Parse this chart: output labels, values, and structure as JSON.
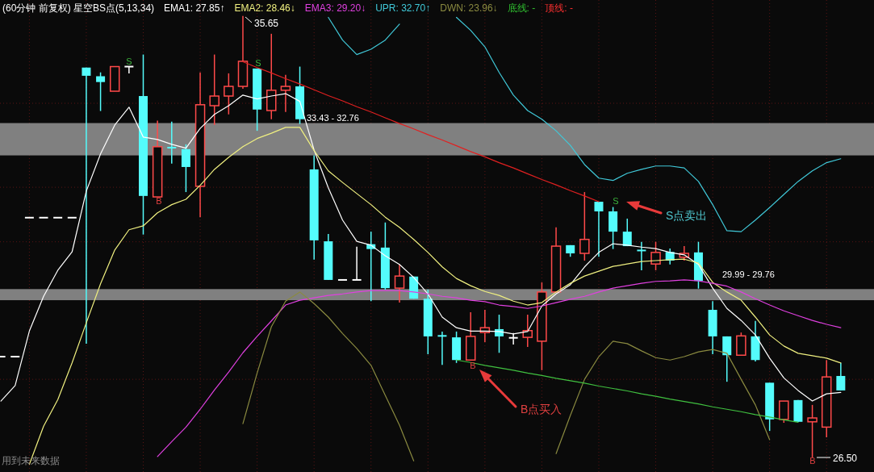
{
  "chart_data": {
    "type": "candlestick",
    "title": "(60分钟 前复权) 星空BS点(5,13,34)",
    "categories": [
      null,
      null,
      null,
      null,
      null,
      null,
      null,
      null,
      null,
      null,
      null,
      null,
      null,
      null,
      null,
      null,
      null,
      null,
      null,
      null,
      null,
      null,
      null,
      null,
      null,
      null,
      null,
      null,
      null,
      null,
      null,
      null,
      null,
      null,
      null,
      null,
      null,
      null,
      null,
      null,
      null,
      null,
      null,
      null,
      null,
      null,
      null,
      null,
      null,
      null,
      null,
      null,
      null,
      null,
      null,
      null,
      null,
      null,
      null,
      null
    ],
    "ylim": [
      26.2,
      35.98
    ],
    "yticks": [
      {
        "value": 33.84,
        "label": null
      },
      {
        "value": 32.1,
        "label": null
      },
      {
        "value": 30.97,
        "label": null
      },
      {
        "value": 28.12,
        "label": null
      }
    ],
    "grid": true,
    "legend": "top",
    "ohlc": [
      [
        28.59,
        28.59,
        28.59,
        28.59
      ],
      [
        28.59,
        28.59,
        28.59,
        28.59
      ],
      [
        31.47,
        31.47,
        31.47,
        31.47
      ],
      [
        31.47,
        31.47,
        31.47,
        31.47
      ],
      [
        31.47,
        31.47,
        31.47,
        31.47
      ],
      [
        31.47,
        31.47,
        31.47,
        31.47
      ],
      [
        34.58,
        34.58,
        28.86,
        34.41
      ],
      [
        34.4,
        34.48,
        33.68,
        34.28
      ],
      [
        34.09,
        34.6,
        34.09,
        34.6
      ],
      [
        34.6,
        34.6,
        34.46,
        34.6
      ],
      [
        33.99,
        34.85,
        31.12,
        31.92
      ],
      [
        31.9,
        33.48,
        31.9,
        32.94
      ],
      [
        32.92,
        33.46,
        32.59,
        32.9
      ],
      [
        32.89,
        32.99,
        32.0,
        32.52
      ],
      [
        32.12,
        34.48,
        31.48,
        33.81
      ],
      [
        33.79,
        34.85,
        33.39,
        33.99
      ],
      [
        33.99,
        34.46,
        33.61,
        34.19
      ],
      [
        34.19,
        35.65,
        34.14,
        34.71
      ],
      [
        34.56,
        34.56,
        33.27,
        33.71
      ],
      [
        33.69,
        35.28,
        33.51,
        34.11
      ],
      [
        34.11,
        34.43,
        33.66,
        34.19
      ],
      [
        34.19,
        34.6,
        33.41,
        33.51
      ],
      [
        32.47,
        32.76,
        30.6,
        31.0
      ],
      [
        30.98,
        31.13,
        30.18,
        30.18
      ],
      [
        30.18,
        30.18,
        30.18,
        30.18
      ],
      [
        30.18,
        30.87,
        30.18,
        30.18
      ],
      [
        30.92,
        31.18,
        29.74,
        30.82
      ],
      [
        30.85,
        31.37,
        29.98,
        30.01
      ],
      [
        30.01,
        30.5,
        29.71,
        30.26
      ],
      [
        30.25,
        30.25,
        29.79,
        29.79
      ],
      [
        29.79,
        29.98,
        28.64,
        29.01
      ],
      [
        29.02,
        29.11,
        28.42,
        29.0
      ],
      [
        28.99,
        29.11,
        28.46,
        28.52
      ],
      [
        28.52,
        29.51,
        28.52,
        29.01
      ],
      [
        29.09,
        29.56,
        28.89,
        29.19
      ],
      [
        29.16,
        29.46,
        28.67,
        29.01
      ],
      [
        28.98,
        29.08,
        28.84,
        28.98
      ],
      [
        28.99,
        29.46,
        28.79,
        29.13
      ],
      [
        28.91,
        30.13,
        28.31,
        29.93
      ],
      [
        29.93,
        31.27,
        29.93,
        30.88
      ],
      [
        30.9,
        30.9,
        30.66,
        30.73
      ],
      [
        30.73,
        32.0,
        30.58,
        31.02
      ],
      [
        31.8,
        31.8,
        30.66,
        31.6
      ],
      [
        31.6,
        31.69,
        30.82,
        31.18
      ],
      [
        31.18,
        31.45,
        30.88,
        30.88
      ],
      [
        30.79,
        30.97,
        30.38,
        30.77
      ],
      [
        30.51,
        30.97,
        30.38,
        30.75
      ],
      [
        30.76,
        30.83,
        30.5,
        30.58
      ],
      [
        30.65,
        30.88,
        30.58,
        30.73
      ],
      [
        30.75,
        30.97,
        30.0,
        30.16
      ],
      [
        29.56,
        29.74,
        28.64,
        29.01
      ],
      [
        29.01,
        29.01,
        28.07,
        28.62
      ],
      [
        28.62,
        29.09,
        28.62,
        29.02
      ],
      [
        29.01,
        29.33,
        28.49,
        28.52
      ],
      [
        28.05,
        28.05,
        27.05,
        27.29
      ],
      [
        27.29,
        27.67,
        27.22,
        27.67
      ],
      [
        27.69,
        27.69,
        27.24,
        27.24
      ],
      [
        27.24,
        27.59,
        26.5,
        27.32
      ],
      [
        27.13,
        28.52,
        26.92,
        28.17
      ],
      [
        28.19,
        28.46,
        27.89,
        27.89
      ]
    ],
    "colors": [
      "#ffffff",
      "#ffffff",
      "#ffffff",
      "#ffffff",
      "#ffffff",
      "#ffffff",
      "#54fcfc",
      "#54fcfc",
      "#ff4a4a",
      "#ffffff",
      "#54fcfc",
      "#ff4a4a",
      "#54fcfc",
      "#54fcfc",
      "#ff4a4a",
      "#ff4a4a",
      "#ff4a4a",
      "#ff4a4a",
      "#54fcfc",
      "#ff4a4a",
      "#ff4a4a",
      "#54fcfc",
      "#54fcfc",
      "#54fcfc",
      "#ffffff",
      "#ffffff",
      "#54fcfc",
      "#54fcfc",
      "#ff4a4a",
      "#54fcfc",
      "#54fcfc",
      "#54fcfc",
      "#54fcfc",
      "#ff4a4a",
      "#ff4a4a",
      "#54fcfc",
      "#ffffff",
      "#ff4a4a",
      "#ff4a4a",
      "#ff4a4a",
      "#54fcfc",
      "#ff4a4a",
      "#54fcfc",
      "#54fcfc",
      "#54fcfc",
      "#54fcfc",
      "#ff4a4a",
      "#54fcfc",
      "#ff4a4a",
      "#54fcfc",
      "#54fcfc",
      "#54fcfc",
      "#ff4a4a",
      "#54fcfc",
      "#54fcfc",
      "#ff4a4a",
      "#54fcfc",
      "#ff4a4a",
      "#ff4a4a",
      "#54fcfc"
    ],
    "series": [
      {
        "type": "line",
        "name": "EMA1: 27.85↑",
        "color": "#ffffff",
        "values": [
          27.67,
          27.99,
          29.12,
          29.84,
          30.38,
          30.76,
          32.02,
          32.79,
          33.39,
          33.76,
          33.14,
          33.09,
          32.99,
          32.91,
          33.32,
          33.61,
          33.79,
          34.01,
          33.93,
          33.99,
          34.04,
          33.88,
          32.87,
          32.09,
          31.42,
          30.98,
          30.9,
          30.68,
          30.5,
          30.23,
          29.89,
          29.41,
          29.19,
          29.12,
          29.12,
          29.11,
          29.06,
          29.11,
          29.64,
          29.89,
          30.08,
          30.45,
          30.75,
          30.93,
          30.9,
          30.86,
          30.83,
          30.75,
          30.7,
          30.5,
          30.01,
          29.59,
          29.34,
          29.04,
          28.56,
          28.15,
          27.89,
          27.67,
          27.82,
          27.85
        ]
      },
      {
        "type": "line",
        "name": "EMA2: 28.46↓",
        "color": "#f0f080",
        "values": [
          null,
          null,
          26.36,
          27.15,
          27.7,
          28.46,
          29.29,
          30.1,
          30.8,
          31.22,
          31.3,
          31.57,
          31.74,
          31.85,
          32.14,
          32.47,
          32.72,
          32.94,
          33.11,
          33.22,
          33.34,
          33.34,
          32.86,
          32.44,
          32.2,
          31.97,
          31.74,
          31.48,
          31.27,
          31.02,
          30.75,
          30.45,
          30.21,
          30.06,
          29.94,
          29.86,
          29.74,
          29.66,
          29.71,
          29.93,
          30.11,
          30.26,
          30.36,
          30.46,
          30.51,
          30.56,
          30.58,
          30.6,
          30.61,
          30.53,
          30.13,
          29.93,
          29.76,
          29.41,
          29.04,
          28.81,
          28.66,
          28.61,
          28.56,
          28.46
        ]
      },
      {
        "type": "line",
        "name": "EMA3: 29.20↓",
        "color": "#e040e0",
        "values": [
          null,
          null,
          null,
          null,
          null,
          null,
          null,
          null,
          null,
          null,
          null,
          26.52,
          26.83,
          27.13,
          27.5,
          27.9,
          28.27,
          28.67,
          29.01,
          29.33,
          29.66,
          29.76,
          29.81,
          29.86,
          29.89,
          29.93,
          29.96,
          29.96,
          29.96,
          29.93,
          29.89,
          29.84,
          29.81,
          29.76,
          29.73,
          29.66,
          29.63,
          29.59,
          29.64,
          29.71,
          29.78,
          29.84,
          29.93,
          30.01,
          30.06,
          30.11,
          30.15,
          30.16,
          30.18,
          30.16,
          30.11,
          30.05,
          29.93,
          29.79,
          29.66,
          29.54,
          29.44,
          29.34,
          29.26,
          29.19
        ]
      },
      {
        "type": "line",
        "name": "UPR: 32.70↑",
        "color": "#40c8d8",
        "values": [
          null,
          null,
          null,
          null,
          null,
          null,
          null,
          null,
          null,
          null,
          null,
          null,
          null,
          null,
          null,
          null,
          null,
          null,
          null,
          null,
          null,
          null,
          null,
          35.62,
          35.15,
          34.85,
          34.96,
          35.15,
          35.48,
          null,
          null,
          null,
          35.62,
          35.35,
          35.01,
          34.48,
          34.01,
          33.69,
          33.51,
          33.27,
          32.97,
          32.57,
          32.29,
          32.24,
          32.39,
          32.47,
          32.54,
          32.54,
          32.5,
          32.22,
          31.74,
          31.2,
          31.18,
          31.42,
          31.68,
          31.95,
          32.22,
          32.44,
          32.61,
          32.69
        ]
      },
      {
        "type": "line",
        "name": "DWN: 23.96↓",
        "color": "#8a8a40",
        "values": [
          null,
          null,
          null,
          null,
          null,
          null,
          null,
          null,
          null,
          null,
          null,
          null,
          null,
          null,
          null,
          null,
          null,
          27.2,
          28.25,
          29.21,
          29.74,
          29.93,
          29.69,
          29.41,
          29.07,
          28.76,
          28.41,
          27.79,
          27.17,
          26.43,
          null,
          null,
          null,
          null,
          null,
          null,
          null,
          null,
          null,
          26.58,
          27.37,
          28.12,
          28.59,
          28.91,
          28.86,
          28.71,
          28.57,
          28.52,
          28.59,
          28.69,
          28.74,
          28.66,
          28.12,
          27.59,
          26.87,
          null,
          null,
          null,
          null,
          null
        ]
      },
      {
        "type": "line",
        "color": "#e02020",
        "values": [
          null,
          null,
          null,
          null,
          null,
          null,
          null,
          null,
          null,
          null,
          null,
          null,
          null,
          null,
          null,
          null,
          null,
          34.7,
          34.58,
          34.47,
          34.35,
          34.24,
          34.12,
          34.0,
          33.89,
          33.77,
          33.66,
          33.54,
          33.42,
          33.31,
          33.19,
          33.08,
          32.96,
          32.84,
          32.73,
          32.61,
          32.5,
          32.38,
          32.26,
          32.15,
          32.03,
          31.92,
          31.8,
          null,
          null,
          null,
          null,
          null,
          null,
          null,
          null,
          null,
          null,
          null,
          null,
          null,
          null,
          null,
          null,
          null
        ]
      },
      {
        "type": "line",
        "color": "#40c040",
        "values": [
          null,
          null,
          null,
          null,
          null,
          null,
          null,
          null,
          null,
          null,
          null,
          null,
          null,
          null,
          null,
          null,
          null,
          null,
          null,
          null,
          null,
          null,
          null,
          null,
          null,
          null,
          null,
          null,
          null,
          null,
          null,
          null,
          28.52,
          28.47,
          28.41,
          28.36,
          28.31,
          28.25,
          28.2,
          28.14,
          28.09,
          28.04,
          27.98,
          27.93,
          27.88,
          27.82,
          27.77,
          27.71,
          27.66,
          27.61,
          27.55,
          27.5,
          27.45,
          27.39,
          27.34,
          27.28,
          27.23,
          null,
          null,
          null
        ]
      }
    ],
    "bands": [
      {
        "axis": "y",
        "from": 32.76,
        "to": 33.43,
        "label": "33.43 - 32.76",
        "color": "#808080"
      },
      {
        "axis": "y",
        "from": 29.76,
        "to": 29.99,
        "label": "29.99 - 29.76",
        "color": "#808080"
      }
    ],
    "annotations": [
      "35.65",
      "26.50",
      "S",
      "S",
      "S",
      "B",
      "B",
      "B",
      "S点卖出",
      "B点买入",
      "底线: -",
      "顶线: -",
      "用到未来数据"
    ]
  }
}
